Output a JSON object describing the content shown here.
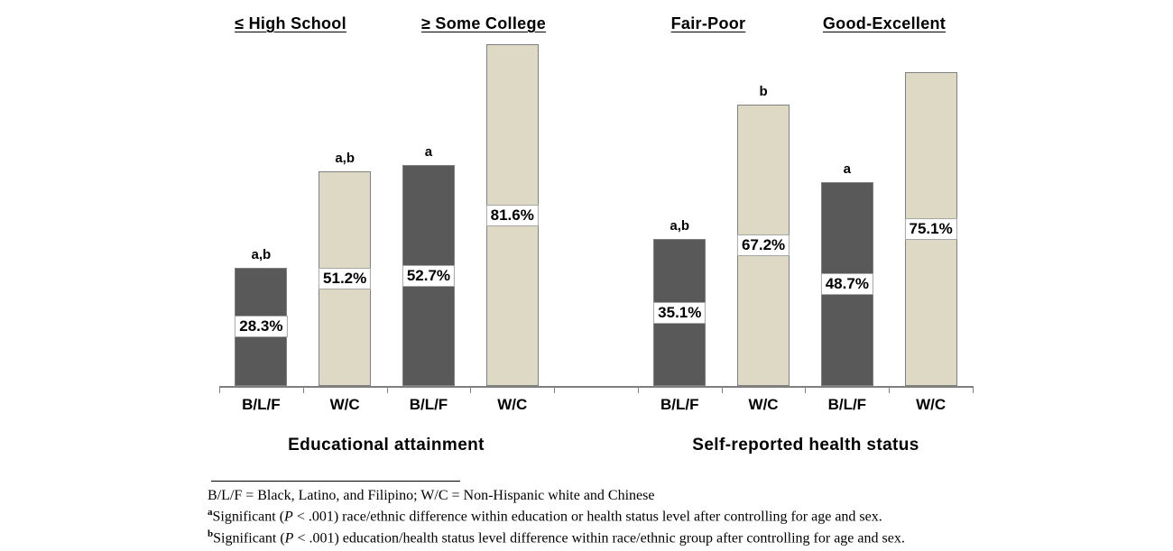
{
  "chart_data": {
    "type": "bar",
    "title": "",
    "section_headers": [
      {
        "label": "≤ High School"
      },
      {
        "label": "≥ Some College"
      },
      {
        "label": "Fair-Poor"
      },
      {
        "label": "Good-Excellent"
      }
    ],
    "group_axis_labels": [
      {
        "label": "Educational attainment"
      },
      {
        "label": "Self-reported health status"
      }
    ],
    "ylim": [
      0,
      88
    ],
    "grid": false,
    "legend_position": "none",
    "categories": [
      "B/L/F",
      "W/C",
      "B/L/F",
      "W/C",
      "B/L/F",
      "W/C",
      "B/L/F",
      "W/C"
    ],
    "bars": [
      {
        "slot": 0,
        "series_key": "blf",
        "category": "B/L/F",
        "section": "≤ High School",
        "value": 28.3,
        "label": "28.3%",
        "sig": "a,b"
      },
      {
        "slot": 1,
        "series_key": "wc",
        "category": "W/C",
        "section": "≤ High School",
        "value": 51.2,
        "label": "51.2%",
        "sig": "a,b"
      },
      {
        "slot": 2,
        "series_key": "blf",
        "category": "B/L/F",
        "section": "≥ Some College",
        "value": 52.7,
        "label": "52.7%",
        "sig": "a"
      },
      {
        "slot": 3,
        "series_key": "wc",
        "category": "W/C",
        "section": "≥ Some College",
        "value": 81.6,
        "label": "81.6%",
        "sig": ""
      },
      {
        "slot": 5,
        "series_key": "blf",
        "category": "B/L/F",
        "section": "Fair-Poor",
        "value": 35.1,
        "label": "35.1%",
        "sig": "a,b"
      },
      {
        "slot": 6,
        "series_key": "wc",
        "category": "W/C",
        "section": "Fair-Poor",
        "value": 67.2,
        "label": "67.2%",
        "sig": "b"
      },
      {
        "slot": 7,
        "series_key": "blf",
        "category": "B/L/F",
        "section": "Good-Excellent",
        "value": 48.7,
        "label": "48.7%",
        "sig": "a"
      },
      {
        "slot": 8,
        "series_key": "wc",
        "category": "W/C",
        "section": "Good-Excellent",
        "value": 75.1,
        "label": "75.1%",
        "sig": ""
      }
    ],
    "colors": {
      "blf_fill": "#595959",
      "wc_fill": "#ddd9c4",
      "bar_border": "#7f7f7f",
      "label_box_border": "#a6a6a6",
      "axis": "#7f7f7f"
    }
  },
  "footnotes": {
    "line1": "B/L/F = Black, Latino, and Filipino; W/C = Non-Hispanic white and Chinese",
    "line2": {
      "sup": "a",
      "pre": "Significant (",
      "p_italic": "P",
      "post": " < .001) race/ethnic difference within education or health status level after controlling for age and sex."
    },
    "line3": {
      "sup": "b",
      "pre": "Significant (",
      "p_italic": "P",
      "post": " < .001) education/health status level difference within race/ethnic group after controlling for age and sex."
    }
  }
}
